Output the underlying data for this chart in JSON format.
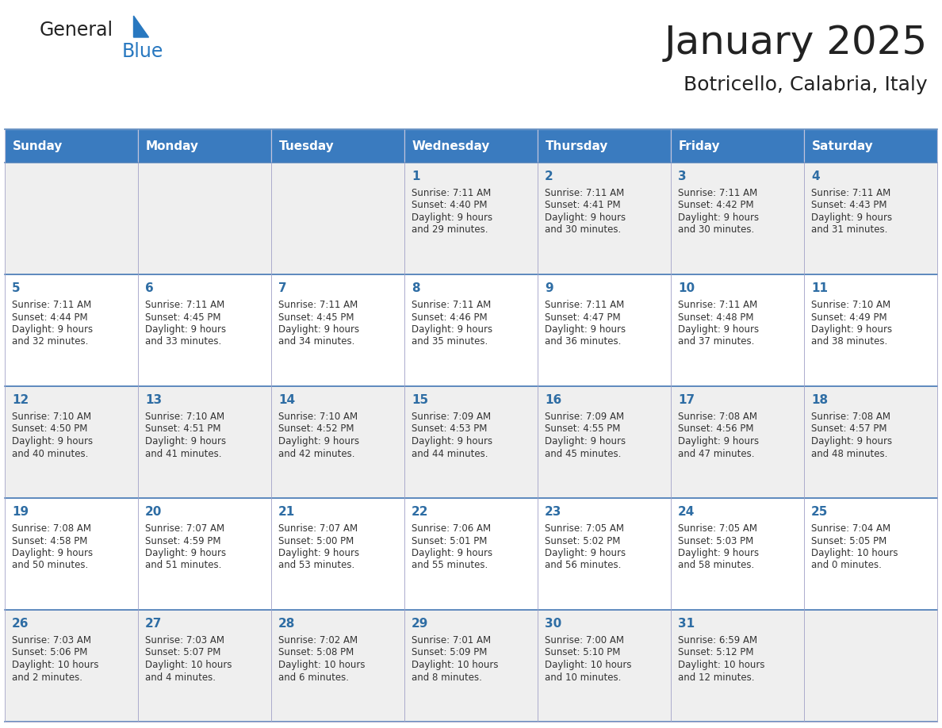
{
  "title": "January 2025",
  "subtitle": "Botricello, Calabria, Italy",
  "days_of_week": [
    "Sunday",
    "Monday",
    "Tuesday",
    "Wednesday",
    "Thursday",
    "Friday",
    "Saturday"
  ],
  "header_bg": "#3A7BBF",
  "header_text": "#FFFFFF",
  "cell_bg_even": "#EFEFEF",
  "cell_bg_odd": "#FFFFFF",
  "cell_border": "#AAAACC",
  "day_number_color": "#2E6DA4",
  "text_color": "#333333",
  "title_color": "#222222",
  "logo_general_color": "#222222",
  "logo_blue_color": "#2878C0",
  "weeks": [
    [
      {
        "day": null,
        "sunrise": null,
        "sunset": null,
        "daylight_line1": null,
        "daylight_line2": null
      },
      {
        "day": null,
        "sunrise": null,
        "sunset": null,
        "daylight_line1": null,
        "daylight_line2": null
      },
      {
        "day": null,
        "sunrise": null,
        "sunset": null,
        "daylight_line1": null,
        "daylight_line2": null
      },
      {
        "day": "1",
        "sunrise": "Sunrise: 7:11 AM",
        "sunset": "Sunset: 4:40 PM",
        "daylight_line1": "Daylight: 9 hours",
        "daylight_line2": "and 29 minutes."
      },
      {
        "day": "2",
        "sunrise": "Sunrise: 7:11 AM",
        "sunset": "Sunset: 4:41 PM",
        "daylight_line1": "Daylight: 9 hours",
        "daylight_line2": "and 30 minutes."
      },
      {
        "day": "3",
        "sunrise": "Sunrise: 7:11 AM",
        "sunset": "Sunset: 4:42 PM",
        "daylight_line1": "Daylight: 9 hours",
        "daylight_line2": "and 30 minutes."
      },
      {
        "day": "4",
        "sunrise": "Sunrise: 7:11 AM",
        "sunset": "Sunset: 4:43 PM",
        "daylight_line1": "Daylight: 9 hours",
        "daylight_line2": "and 31 minutes."
      }
    ],
    [
      {
        "day": "5",
        "sunrise": "Sunrise: 7:11 AM",
        "sunset": "Sunset: 4:44 PM",
        "daylight_line1": "Daylight: 9 hours",
        "daylight_line2": "and 32 minutes."
      },
      {
        "day": "6",
        "sunrise": "Sunrise: 7:11 AM",
        "sunset": "Sunset: 4:45 PM",
        "daylight_line1": "Daylight: 9 hours",
        "daylight_line2": "and 33 minutes."
      },
      {
        "day": "7",
        "sunrise": "Sunrise: 7:11 AM",
        "sunset": "Sunset: 4:45 PM",
        "daylight_line1": "Daylight: 9 hours",
        "daylight_line2": "and 34 minutes."
      },
      {
        "day": "8",
        "sunrise": "Sunrise: 7:11 AM",
        "sunset": "Sunset: 4:46 PM",
        "daylight_line1": "Daylight: 9 hours",
        "daylight_line2": "and 35 minutes."
      },
      {
        "day": "9",
        "sunrise": "Sunrise: 7:11 AM",
        "sunset": "Sunset: 4:47 PM",
        "daylight_line1": "Daylight: 9 hours",
        "daylight_line2": "and 36 minutes."
      },
      {
        "day": "10",
        "sunrise": "Sunrise: 7:11 AM",
        "sunset": "Sunset: 4:48 PM",
        "daylight_line1": "Daylight: 9 hours",
        "daylight_line2": "and 37 minutes."
      },
      {
        "day": "11",
        "sunrise": "Sunrise: 7:10 AM",
        "sunset": "Sunset: 4:49 PM",
        "daylight_line1": "Daylight: 9 hours",
        "daylight_line2": "and 38 minutes."
      }
    ],
    [
      {
        "day": "12",
        "sunrise": "Sunrise: 7:10 AM",
        "sunset": "Sunset: 4:50 PM",
        "daylight_line1": "Daylight: 9 hours",
        "daylight_line2": "and 40 minutes."
      },
      {
        "day": "13",
        "sunrise": "Sunrise: 7:10 AM",
        "sunset": "Sunset: 4:51 PM",
        "daylight_line1": "Daylight: 9 hours",
        "daylight_line2": "and 41 minutes."
      },
      {
        "day": "14",
        "sunrise": "Sunrise: 7:10 AM",
        "sunset": "Sunset: 4:52 PM",
        "daylight_line1": "Daylight: 9 hours",
        "daylight_line2": "and 42 minutes."
      },
      {
        "day": "15",
        "sunrise": "Sunrise: 7:09 AM",
        "sunset": "Sunset: 4:53 PM",
        "daylight_line1": "Daylight: 9 hours",
        "daylight_line2": "and 44 minutes."
      },
      {
        "day": "16",
        "sunrise": "Sunrise: 7:09 AM",
        "sunset": "Sunset: 4:55 PM",
        "daylight_line1": "Daylight: 9 hours",
        "daylight_line2": "and 45 minutes."
      },
      {
        "day": "17",
        "sunrise": "Sunrise: 7:08 AM",
        "sunset": "Sunset: 4:56 PM",
        "daylight_line1": "Daylight: 9 hours",
        "daylight_line2": "and 47 minutes."
      },
      {
        "day": "18",
        "sunrise": "Sunrise: 7:08 AM",
        "sunset": "Sunset: 4:57 PM",
        "daylight_line1": "Daylight: 9 hours",
        "daylight_line2": "and 48 minutes."
      }
    ],
    [
      {
        "day": "19",
        "sunrise": "Sunrise: 7:08 AM",
        "sunset": "Sunset: 4:58 PM",
        "daylight_line1": "Daylight: 9 hours",
        "daylight_line2": "and 50 minutes."
      },
      {
        "day": "20",
        "sunrise": "Sunrise: 7:07 AM",
        "sunset": "Sunset: 4:59 PM",
        "daylight_line1": "Daylight: 9 hours",
        "daylight_line2": "and 51 minutes."
      },
      {
        "day": "21",
        "sunrise": "Sunrise: 7:07 AM",
        "sunset": "Sunset: 5:00 PM",
        "daylight_line1": "Daylight: 9 hours",
        "daylight_line2": "and 53 minutes."
      },
      {
        "day": "22",
        "sunrise": "Sunrise: 7:06 AM",
        "sunset": "Sunset: 5:01 PM",
        "daylight_line1": "Daylight: 9 hours",
        "daylight_line2": "and 55 minutes."
      },
      {
        "day": "23",
        "sunrise": "Sunrise: 7:05 AM",
        "sunset": "Sunset: 5:02 PM",
        "daylight_line1": "Daylight: 9 hours",
        "daylight_line2": "and 56 minutes."
      },
      {
        "day": "24",
        "sunrise": "Sunrise: 7:05 AM",
        "sunset": "Sunset: 5:03 PM",
        "daylight_line1": "Daylight: 9 hours",
        "daylight_line2": "and 58 minutes."
      },
      {
        "day": "25",
        "sunrise": "Sunrise: 7:04 AM",
        "sunset": "Sunset: 5:05 PM",
        "daylight_line1": "Daylight: 10 hours",
        "daylight_line2": "and 0 minutes."
      }
    ],
    [
      {
        "day": "26",
        "sunrise": "Sunrise: 7:03 AM",
        "sunset": "Sunset: 5:06 PM",
        "daylight_line1": "Daylight: 10 hours",
        "daylight_line2": "and 2 minutes."
      },
      {
        "day": "27",
        "sunrise": "Sunrise: 7:03 AM",
        "sunset": "Sunset: 5:07 PM",
        "daylight_line1": "Daylight: 10 hours",
        "daylight_line2": "and 4 minutes."
      },
      {
        "day": "28",
        "sunrise": "Sunrise: 7:02 AM",
        "sunset": "Sunset: 5:08 PM",
        "daylight_line1": "Daylight: 10 hours",
        "daylight_line2": "and 6 minutes."
      },
      {
        "day": "29",
        "sunrise": "Sunrise: 7:01 AM",
        "sunset": "Sunset: 5:09 PM",
        "daylight_line1": "Daylight: 10 hours",
        "daylight_line2": "and 8 minutes."
      },
      {
        "day": "30",
        "sunrise": "Sunrise: 7:00 AM",
        "sunset": "Sunset: 5:10 PM",
        "daylight_line1": "Daylight: 10 hours",
        "daylight_line2": "and 10 minutes."
      },
      {
        "day": "31",
        "sunrise": "Sunrise: 6:59 AM",
        "sunset": "Sunset: 5:12 PM",
        "daylight_line1": "Daylight: 10 hours",
        "daylight_line2": "and 12 minutes."
      },
      {
        "day": null,
        "sunrise": null,
        "sunset": null,
        "daylight_line1": null,
        "daylight_line2": null
      }
    ]
  ]
}
